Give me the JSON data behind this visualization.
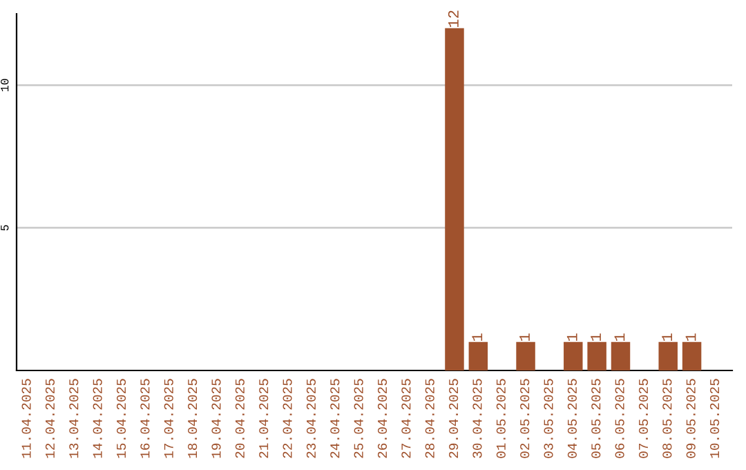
{
  "chart_data": {
    "type": "bar",
    "categories": [
      "11.04.2025",
      "12.04.2025",
      "13.04.2025",
      "14.04.2025",
      "15.04.2025",
      "16.04.2025",
      "17.04.2025",
      "18.04.2025",
      "19.04.2025",
      "20.04.2025",
      "21.04.2025",
      "22.04.2025",
      "23.04.2025",
      "24.04.2025",
      "25.04.2025",
      "26.04.2025",
      "27.04.2025",
      "28.04.2025",
      "29.04.2025",
      "30.04.2025",
      "01.05.2025",
      "02.05.2025",
      "03.05.2025",
      "04.05.2025",
      "05.05.2025",
      "06.05.2025",
      "07.05.2025",
      "08.05.2025",
      "09.05.2025",
      "10.05.2025"
    ],
    "values": [
      0,
      0,
      0,
      0,
      0,
      0,
      0,
      0,
      0,
      0,
      0,
      0,
      0,
      0,
      0,
      0,
      0,
      0,
      12,
      1,
      0,
      1,
      0,
      1,
      1,
      1,
      0,
      1,
      1,
      0
    ],
    "value_labels": [
      null,
      null,
      null,
      null,
      null,
      null,
      null,
      null,
      null,
      null,
      null,
      null,
      null,
      null,
      null,
      null,
      null,
      null,
      "12",
      "1",
      null,
      "1",
      null,
      "1",
      "1",
      "1",
      null,
      "1",
      "1",
      null
    ],
    "color": "#a0522d",
    "ylim": [
      0,
      12.5
    ],
    "yticks": [
      5,
      10
    ],
    "grid": "y"
  }
}
